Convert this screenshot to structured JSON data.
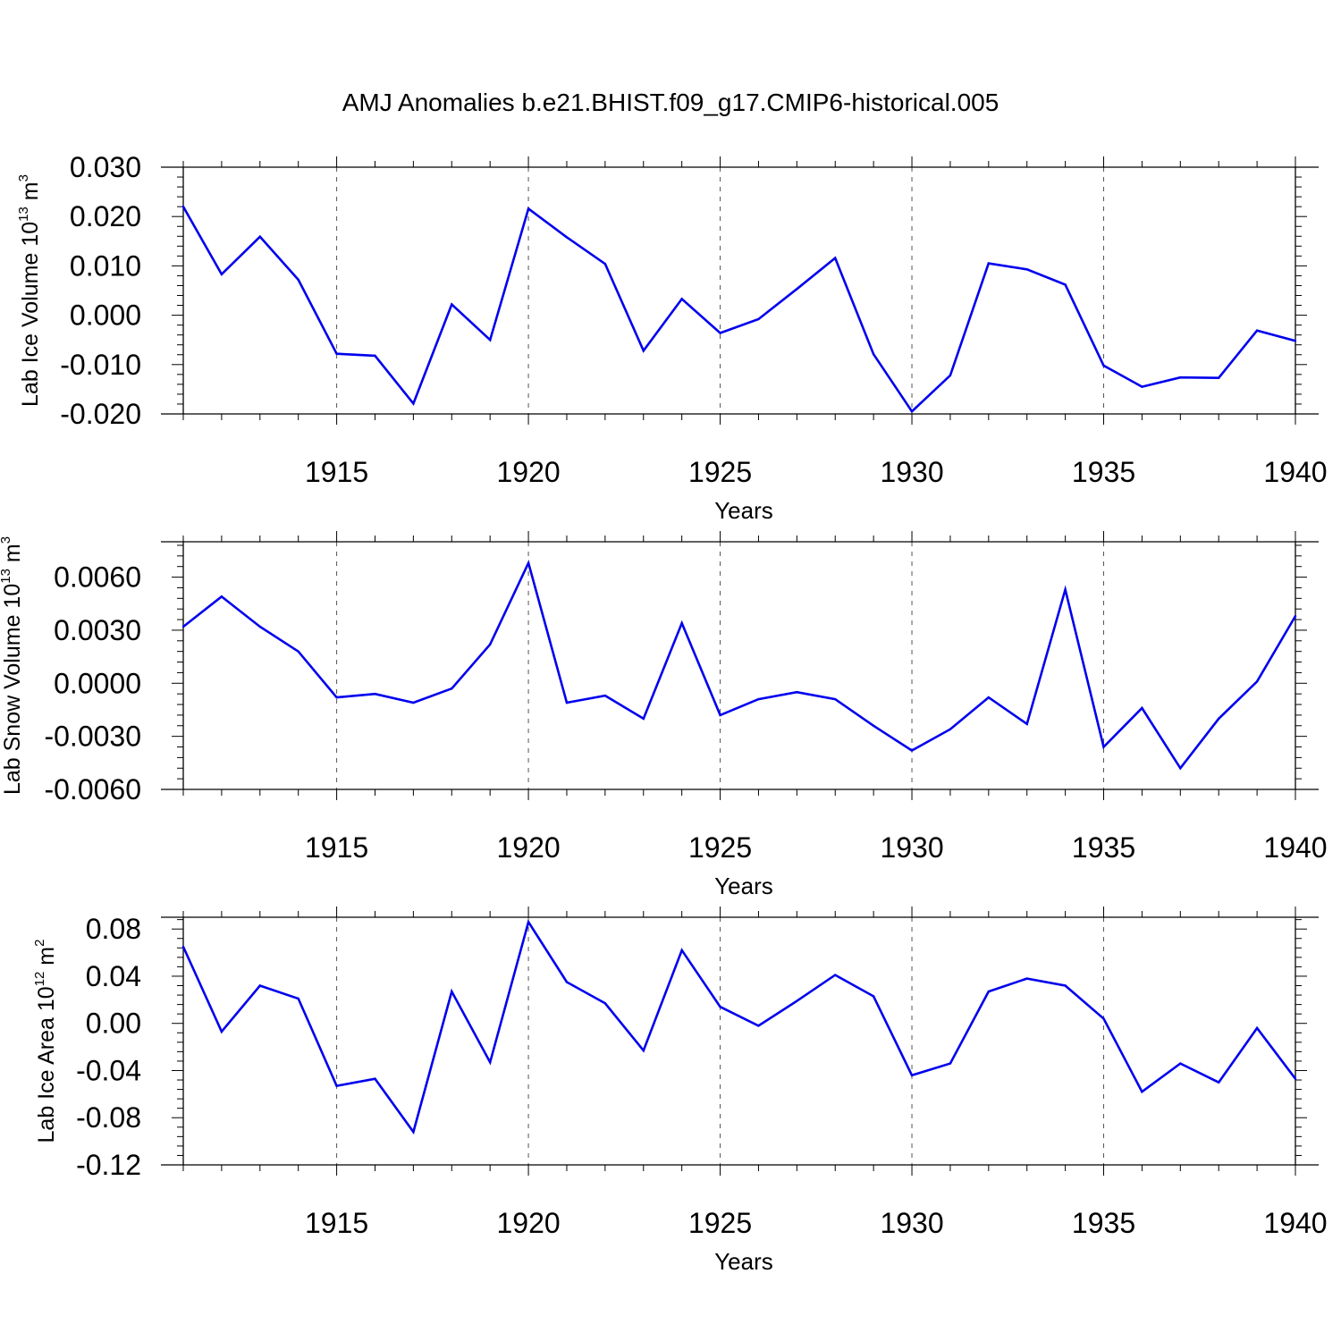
{
  "figure": {
    "title": "AMJ Anomalies b.e21.BHIST.f09_g17.CMIP6-historical.005"
  },
  "chart_data": [
    {
      "type": "line",
      "title": "AMJ Anomalies b.e21.BHIST.f09_g17.CMIP6-historical.005",
      "xlabel": "Years",
      "ylabel_text": "Lab Ice Volume 10",
      "ylabel_exp": "13",
      "ylabel_unit": " m",
      "ylabel_unit_exp": "3",
      "xlim": [
        1911,
        1940
      ],
      "ylim": [
        -0.02,
        0.03
      ],
      "x_ticks": [
        1915,
        1920,
        1925,
        1930,
        1935,
        1940
      ],
      "x_tick_labels": [
        "1915",
        "1920",
        "1925",
        "1930",
        "1935",
        "1940"
      ],
      "y_ticks": [
        0.03,
        0.02,
        0.01,
        0.0,
        -0.01,
        -0.02
      ],
      "y_tick_labels": [
        "0.030",
        "0.020",
        "0.010",
        "0.000",
        "-0.010",
        "-0.020"
      ],
      "grid": "vertical-dashed-at-major-x",
      "line_color": "#0000ee",
      "x": [
        1911,
        1912,
        1913,
        1914,
        1915,
        1916,
        1917,
        1918,
        1919,
        1920,
        1921,
        1922,
        1923,
        1924,
        1925,
        1926,
        1927,
        1928,
        1929,
        1930,
        1931,
        1932,
        1933,
        1934,
        1935,
        1936,
        1937,
        1938,
        1939,
        1940
      ],
      "values": [
        0.022,
        0.0083,
        0.0159,
        0.0072,
        -0.0078,
        -0.0082,
        -0.0179,
        0.0022,
        -0.005,
        0.0216,
        0.0158,
        0.0104,
        -0.0072,
        0.0033,
        -0.0036,
        -0.0008,
        0.0053,
        0.0116,
        -0.0079,
        -0.0195,
        -0.0122,
        0.0105,
        0.0093,
        0.0062,
        -0.0102,
        -0.0145,
        -0.0126,
        -0.0127,
        -0.0031,
        -0.0052
      ]
    },
    {
      "type": "line",
      "xlabel": "Years",
      "ylabel_text": "Lab Snow Volume 10",
      "ylabel_exp": "13",
      "ylabel_unit": " m",
      "ylabel_unit_exp": "3",
      "xlim": [
        1911,
        1940
      ],
      "ylim": [
        -0.006,
        0.008
      ],
      "x_ticks": [
        1915,
        1920,
        1925,
        1930,
        1935,
        1940
      ],
      "x_tick_labels": [
        "1915",
        "1920",
        "1925",
        "1930",
        "1935",
        "1940"
      ],
      "y_ticks": [
        0.006,
        0.003,
        0.0,
        -0.003,
        -0.006
      ],
      "y_tick_labels": [
        "0.0060",
        "0.0030",
        "0.0000",
        "-0.0030",
        "-0.0060"
      ],
      "grid": "vertical-dashed-at-major-x",
      "line_color": "#0000ee",
      "x": [
        1911,
        1912,
        1913,
        1914,
        1915,
        1916,
        1917,
        1918,
        1919,
        1920,
        1921,
        1922,
        1923,
        1924,
        1925,
        1926,
        1927,
        1928,
        1929,
        1930,
        1931,
        1932,
        1933,
        1934,
        1935,
        1936,
        1937,
        1938,
        1939,
        1940
      ],
      "values": [
        0.0032,
        0.0049,
        0.0032,
        0.0018,
        -0.0008,
        -0.0006,
        -0.0011,
        -0.0003,
        0.0022,
        0.0068,
        -0.0011,
        -0.0007,
        -0.002,
        0.0034,
        -0.0018,
        -0.0009,
        -0.0005,
        -0.0009,
        -0.0024,
        -0.0038,
        -0.0026,
        -0.0008,
        -0.0023,
        0.0053,
        -0.0036,
        -0.0014,
        -0.0048,
        -0.002,
        0.0001,
        0.0038
      ]
    },
    {
      "type": "line",
      "xlabel": "Years",
      "ylabel_text": "Lab Ice Area 10",
      "ylabel_exp": "12",
      "ylabel_unit": " m",
      "ylabel_unit_exp": "2",
      "xlim": [
        1911,
        1940
      ],
      "ylim": [
        -0.12,
        0.09
      ],
      "x_ticks": [
        1915,
        1920,
        1925,
        1930,
        1935,
        1940
      ],
      "x_tick_labels": [
        "1915",
        "1920",
        "1925",
        "1930",
        "1935",
        "1940"
      ],
      "y_ticks": [
        0.08,
        0.04,
        0.0,
        -0.04,
        -0.08,
        -0.12
      ],
      "y_tick_labels": [
        "0.08",
        "0.04",
        "0.00",
        "-0.04",
        "-0.08",
        "-0.12"
      ],
      "grid": "vertical-dashed-at-major-x",
      "line_color": "#0000ee",
      "x": [
        1911,
        1912,
        1913,
        1914,
        1915,
        1916,
        1917,
        1918,
        1919,
        1920,
        1921,
        1922,
        1923,
        1924,
        1925,
        1926,
        1927,
        1928,
        1929,
        1930,
        1931,
        1932,
        1933,
        1934,
        1935,
        1936,
        1937,
        1938,
        1939,
        1940
      ],
      "values": [
        0.065,
        -0.007,
        0.032,
        0.021,
        -0.053,
        -0.047,
        -0.092,
        0.027,
        -0.033,
        0.086,
        0.035,
        0.017,
        -0.023,
        0.062,
        0.014,
        -0.002,
        0.019,
        0.041,
        0.023,
        -0.044,
        -0.034,
        0.027,
        0.038,
        0.032,
        0.004,
        -0.058,
        -0.034,
        -0.05,
        -0.004,
        -0.047
      ]
    }
  ]
}
